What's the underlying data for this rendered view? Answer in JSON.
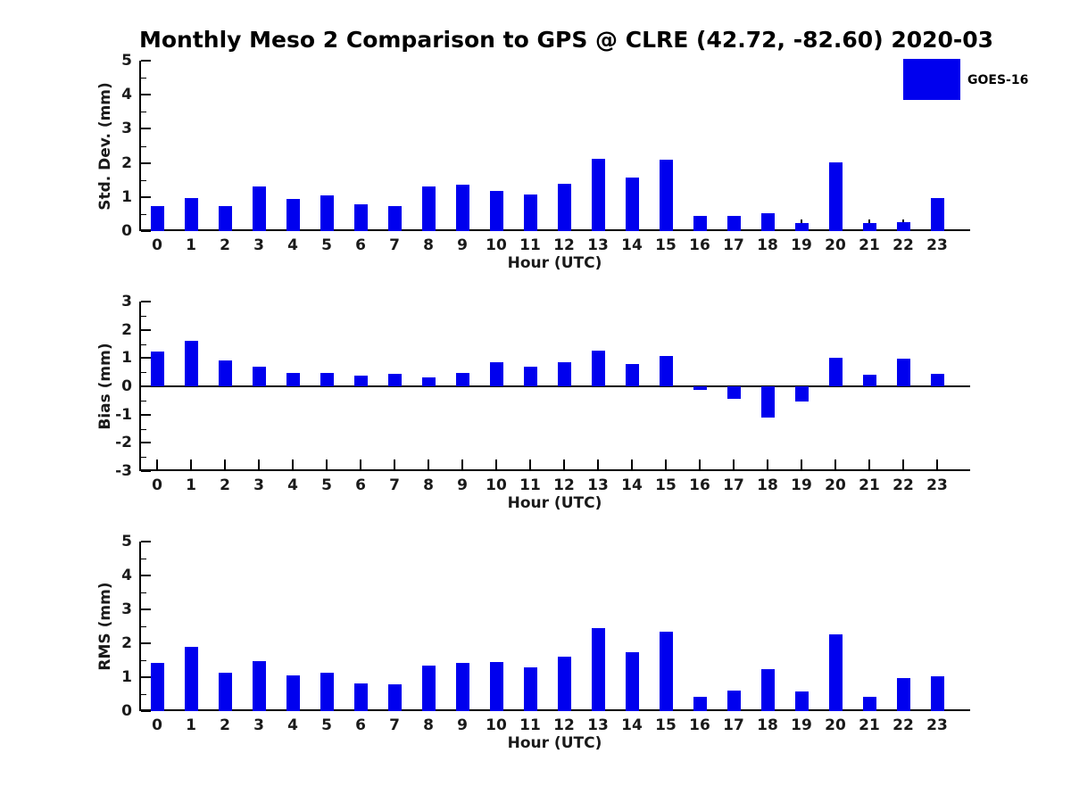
{
  "title": "Monthly Meso 2 Comparison to GPS @ CLRE (42.72, -82.60) 2020-03",
  "legend": {
    "label": "GOES-16",
    "color": "#0000EE",
    "position": "upper-right-inside"
  },
  "colors": {
    "bar": "#0000EE",
    "axis": "#000000",
    "text": "#1a1a1a"
  },
  "chart_data": [
    {
      "type": "bar",
      "series_name": "GOES-16",
      "color": "#0000EE",
      "ylabel": "Std. Dev. (mm)",
      "xlabel": "Hour (UTC)",
      "ylim": [
        0,
        5
      ],
      "yticks": [
        0,
        1,
        2,
        3,
        4,
        5
      ],
      "minor_tick_step": 0.5,
      "grid": false,
      "categories": [
        "0",
        "1",
        "2",
        "3",
        "4",
        "5",
        "6",
        "7",
        "8",
        "9",
        "10",
        "11",
        "12",
        "13",
        "14",
        "15",
        "16",
        "17",
        "18",
        "19",
        "20",
        "21",
        "22",
        "23"
      ],
      "values": [
        0.72,
        0.98,
        0.72,
        1.3,
        0.93,
        1.06,
        0.78,
        0.72,
        1.31,
        1.37,
        1.19,
        1.08,
        1.4,
        2.12,
        1.58,
        2.1,
        0.45,
        0.45,
        0.52,
        0.24,
        2.02,
        0.23,
        0.26,
        0.96
      ]
    },
    {
      "type": "bar",
      "series_name": "GOES-16",
      "color": "#0000EE",
      "ylabel": "Bias (mm)",
      "xlabel": "Hour (UTC)",
      "ylim": [
        -3,
        3
      ],
      "yticks": [
        3,
        2,
        1,
        0,
        -1,
        -2,
        -3
      ],
      "minor_tick_step": 0.5,
      "grid": false,
      "zero_line": true,
      "categories": [
        "0",
        "1",
        "2",
        "3",
        "4",
        "5",
        "6",
        "7",
        "8",
        "9",
        "10",
        "11",
        "12",
        "13",
        "14",
        "15",
        "16",
        "17",
        "18",
        "19",
        "20",
        "21",
        "22",
        "23"
      ],
      "values": [
        1.22,
        1.6,
        0.92,
        0.7,
        0.48,
        0.48,
        0.37,
        0.43,
        0.33,
        0.46,
        0.84,
        0.68,
        0.86,
        1.26,
        0.79,
        1.07,
        -0.13,
        -0.44,
        -1.1,
        -0.55,
        1.01,
        0.4,
        0.98,
        0.43
      ]
    },
    {
      "type": "bar",
      "series_name": "GOES-16",
      "color": "#0000EE",
      "ylabel": "RMS (mm)",
      "xlabel": "Hour (UTC)",
      "ylim": [
        0,
        5
      ],
      "yticks": [
        0,
        1,
        2,
        3,
        4,
        5
      ],
      "minor_tick_step": 0.5,
      "grid": false,
      "categories": [
        "0",
        "1",
        "2",
        "3",
        "4",
        "5",
        "6",
        "7",
        "8",
        "9",
        "10",
        "11",
        "12",
        "13",
        "14",
        "15",
        "16",
        "17",
        "18",
        "19",
        "20",
        "21",
        "22",
        "23"
      ],
      "values": [
        1.42,
        1.89,
        1.14,
        1.47,
        1.04,
        1.14,
        0.82,
        0.79,
        1.33,
        1.42,
        1.45,
        1.28,
        1.61,
        2.45,
        1.73,
        2.33,
        0.42,
        0.61,
        1.24,
        0.58,
        2.26,
        0.42,
        0.98,
        1.03
      ]
    }
  ]
}
